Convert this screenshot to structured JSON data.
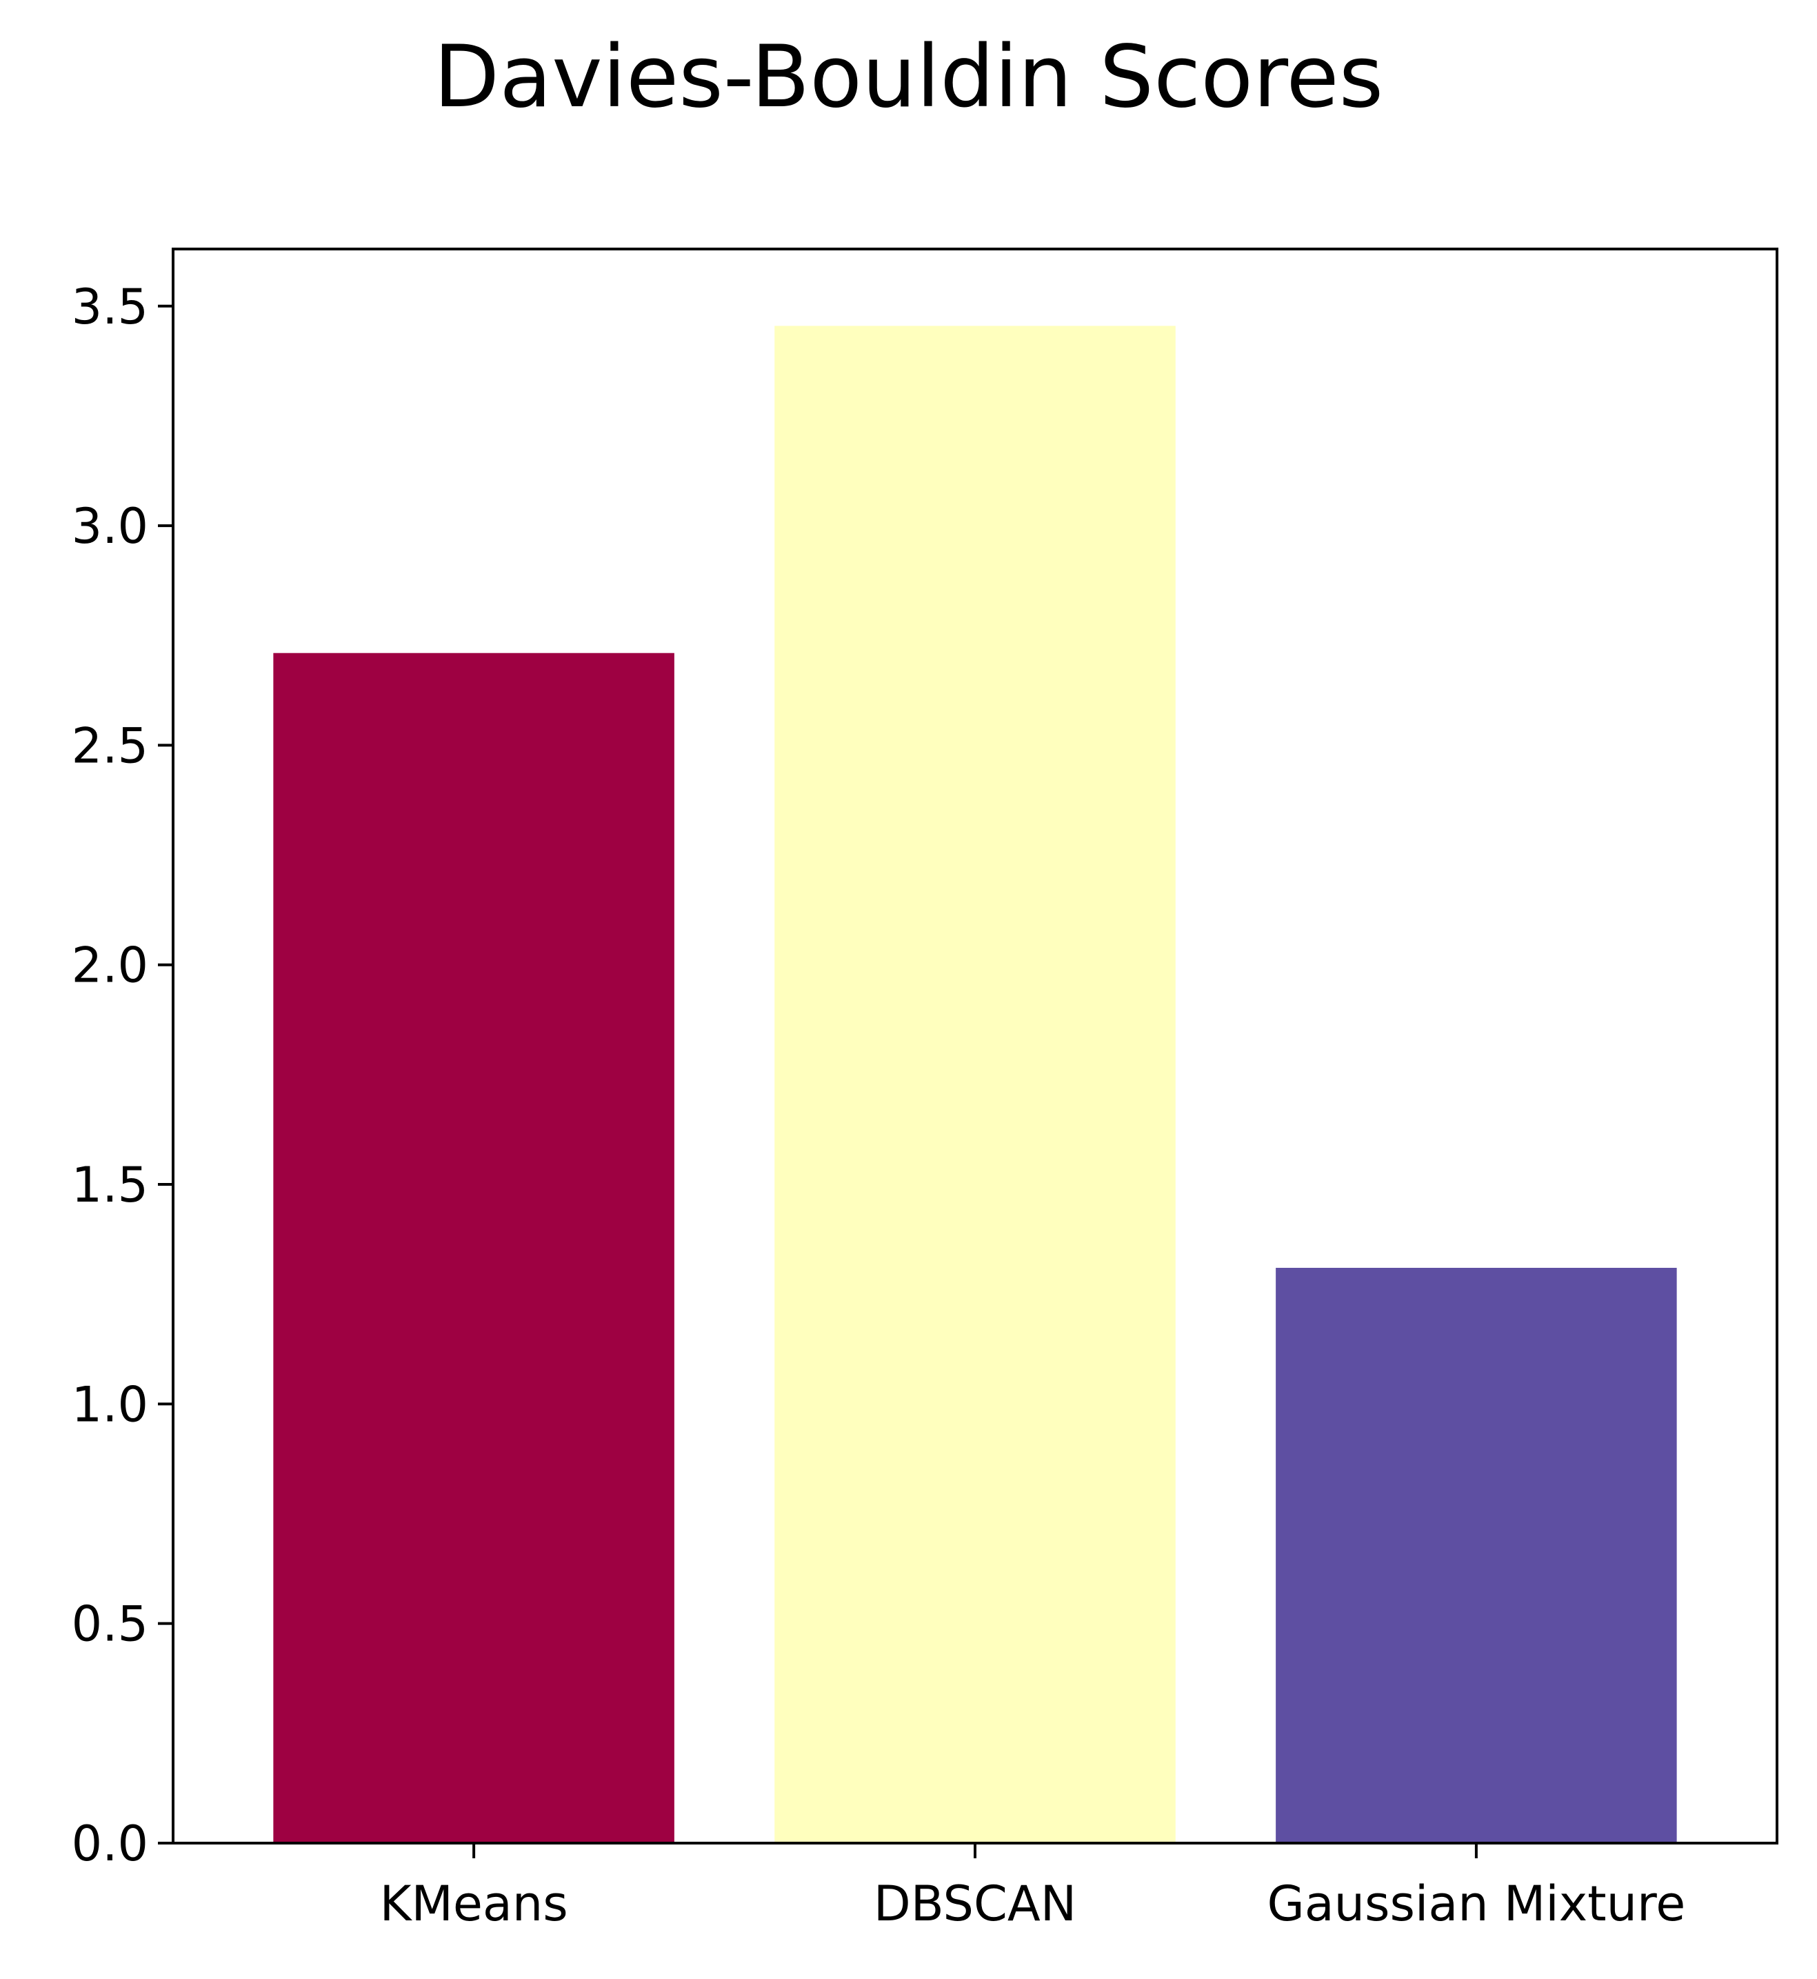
{
  "chart_data": {
    "type": "bar",
    "title": "Davies-Bouldin Scores",
    "xlabel": "",
    "ylabel": "",
    "categories": [
      "KMeans",
      "DBSCAN",
      "Gaussian Mixture"
    ],
    "values": [
      2.71,
      3.455,
      1.31
    ],
    "colors": [
      "#9e0142",
      "#ffffbe",
      "#5e4fa2"
    ],
    "ylim": [
      0,
      3.63
    ],
    "yticks": [
      0.0,
      0.5,
      1.0,
      1.5,
      2.0,
      2.5,
      3.0,
      3.5
    ],
    "ytick_labels": [
      "0.0",
      "0.5",
      "1.0",
      "1.5",
      "2.0",
      "2.5",
      "3.0",
      "3.5"
    ],
    "grid": false,
    "legend": "none"
  }
}
